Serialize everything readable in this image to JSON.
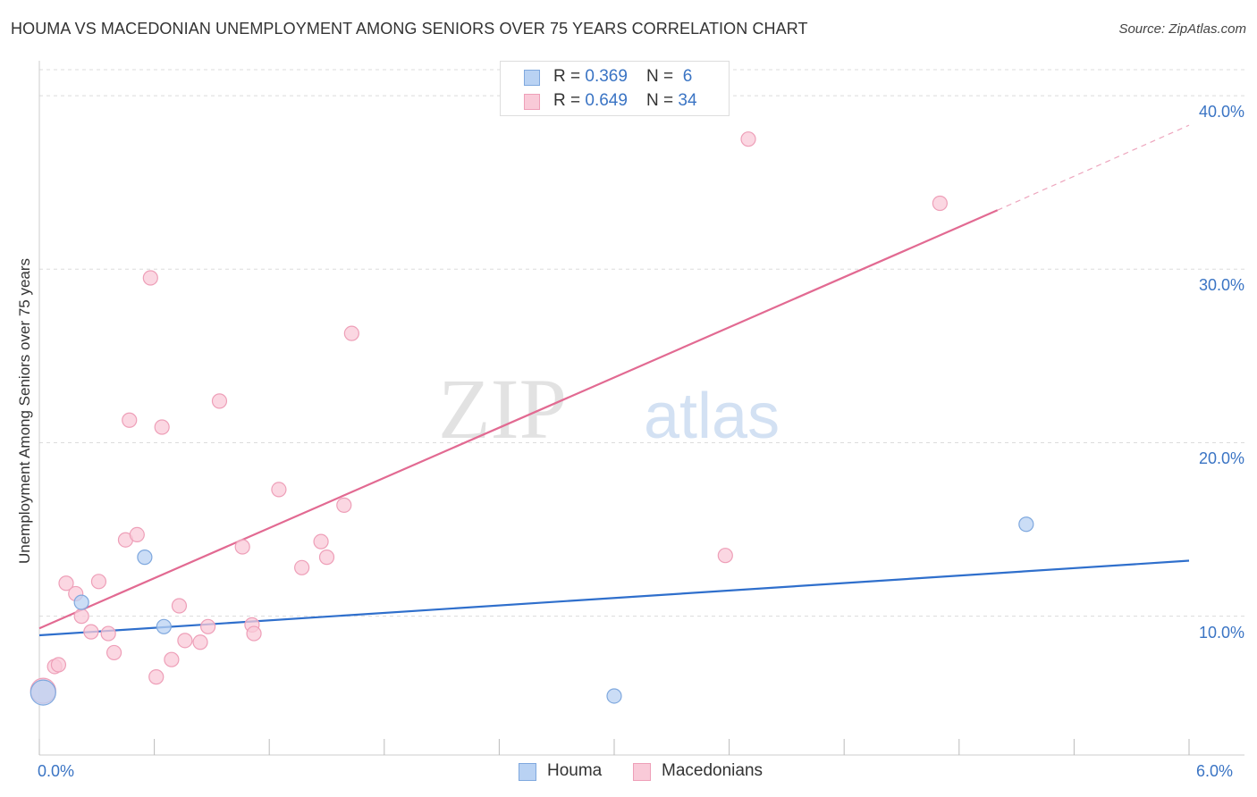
{
  "title": "HOUMA VS MACEDONIAN UNEMPLOYMENT AMONG SENIORS OVER 75 YEARS CORRELATION CHART",
  "source": "Source: ZipAtlas.com",
  "watermark": {
    "zip": "ZIP",
    "atlas": "atlas"
  },
  "legend": {
    "rows": [
      {
        "r_label": "R = ",
        "r_value": "0.369",
        "n_label": "N = ",
        "n_value": " 6"
      },
      {
        "r_label": "R = ",
        "r_value": "0.649",
        "n_label": "N = ",
        "n_value": "34"
      }
    ]
  },
  "bottom_legend": {
    "houma": "Houma",
    "macedonians": "Macedonians"
  },
  "colors": {
    "houma_fill": "#b9d2f3",
    "houma_stroke": "#7fa8de",
    "houma_line": "#2f6fcc",
    "mac_fill": "#f9cad8",
    "mac_stroke": "#ee9fb8",
    "mac_line": "#e26a92",
    "grid": "#dcdcdc",
    "tick_label": "#3a74c4"
  },
  "chart_data": {
    "type": "scatter",
    "title": "HOUMA VS MACEDONIAN UNEMPLOYMENT AMONG SENIORS OVER 75 YEARS CORRELATION CHART",
    "xlabel": "",
    "ylabel": "Unemployment Among Seniors over 75 years",
    "xlim": [
      0,
      6
    ],
    "ylim": [
      2.0,
      41.5
    ],
    "x_tick_labels": {
      "min": "0.0%",
      "max": "6.0%"
    },
    "y_ticks": [
      {
        "value": 10,
        "label": "10.0%"
      },
      {
        "value": 20,
        "label": "20.0%"
      },
      {
        "value": 30,
        "label": "30.0%"
      },
      {
        "value": 40,
        "label": "40.0%"
      }
    ],
    "grid": true,
    "series": [
      {
        "name": "Houma",
        "R": 0.369,
        "N": 6,
        "points": [
          {
            "x": 0.02,
            "y": 5.6,
            "big": true
          },
          {
            "x": 0.22,
            "y": 10.8
          },
          {
            "x": 0.55,
            "y": 13.4
          },
          {
            "x": 0.65,
            "y": 9.4
          },
          {
            "x": 3.0,
            "y": 5.4
          },
          {
            "x": 5.15,
            "y": 15.3
          }
        ],
        "trend": {
          "x0": 0,
          "y0": 8.9,
          "x1": 6.0,
          "y1": 13.2
        }
      },
      {
        "name": "Macedonians",
        "R": 0.649,
        "N": 34,
        "points": [
          {
            "x": 0.02,
            "y": 5.7,
            "big": true
          },
          {
            "x": 0.08,
            "y": 7.1
          },
          {
            "x": 0.1,
            "y": 7.2
          },
          {
            "x": 0.14,
            "y": 11.9
          },
          {
            "x": 0.19,
            "y": 11.3
          },
          {
            "x": 0.22,
            "y": 10.0
          },
          {
            "x": 0.27,
            "y": 9.1
          },
          {
            "x": 0.31,
            "y": 12.0
          },
          {
            "x": 0.36,
            "y": 9.0
          },
          {
            "x": 0.39,
            "y": 7.9
          },
          {
            "x": 0.45,
            "y": 14.4
          },
          {
            "x": 0.47,
            "y": 21.3
          },
          {
            "x": 0.51,
            "y": 14.7
          },
          {
            "x": 0.58,
            "y": 29.5
          },
          {
            "x": 0.61,
            "y": 6.5
          },
          {
            "x": 0.64,
            "y": 20.9
          },
          {
            "x": 0.69,
            "y": 7.5
          },
          {
            "x": 0.73,
            "y": 10.6
          },
          {
            "x": 0.76,
            "y": 8.6
          },
          {
            "x": 0.84,
            "y": 8.5
          },
          {
            "x": 0.88,
            "y": 9.4
          },
          {
            "x": 0.94,
            "y": 22.4
          },
          {
            "x": 1.06,
            "y": 14.0
          },
          {
            "x": 1.11,
            "y": 9.5
          },
          {
            "x": 1.12,
            "y": 9.0
          },
          {
            "x": 1.25,
            "y": 17.3
          },
          {
            "x": 1.37,
            "y": 12.8
          },
          {
            "x": 1.47,
            "y": 14.3
          },
          {
            "x": 1.5,
            "y": 13.4
          },
          {
            "x": 1.59,
            "y": 16.4
          },
          {
            "x": 1.63,
            "y": 26.3
          },
          {
            "x": 3.58,
            "y": 13.5
          },
          {
            "x": 3.7,
            "y": 37.5
          },
          {
            "x": 4.7,
            "y": 33.8
          }
        ],
        "trend": {
          "x0": 0,
          "y0": 9.3,
          "x1": 5.0,
          "y1": 33.4,
          "dash_x1": 6.0,
          "dash_y1": 38.3
        }
      }
    ]
  }
}
